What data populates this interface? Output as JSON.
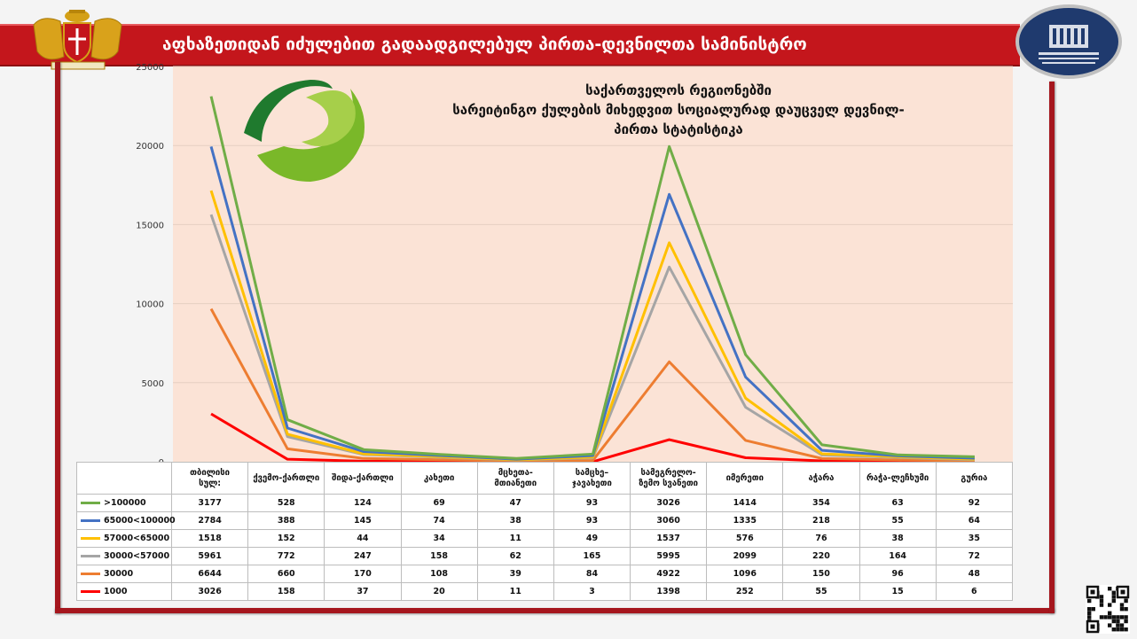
{
  "header": {
    "title": "აფხაზეთიდან იძულებით გადაადგილებულ პირთა-დევნილთა სამინისტრო"
  },
  "chart_data": {
    "type": "line",
    "title": "საქართველოს რეგიონებში სარეიტინგო ქულების მიხედვით სოციალურად დაუცველ დევნილ-პირთა  სტატისტიკა",
    "title_lines": [
      "საქართველოს რეგიონებში",
      "სარეიტინგო ქულების მიხედვით სოციალურად დაუცველ დევნილ-",
      "პირთა  სტატისტიკა"
    ],
    "ylim": [
      0,
      25000
    ],
    "yticks": [
      0,
      5000,
      10000,
      15000,
      20000,
      25000
    ],
    "grid": true,
    "legend_placement": "data-table-left",
    "categories": [
      "თბილისი სულ:",
      "ქვემო-ქართლი",
      "შიდა-ქართლი",
      "კახეთი",
      "მცხეთა-მთიანეთი",
      "სამცხე–ჯავახეთი",
      "სამეგრელო-ზემო სვანეთი",
      "იმერეთი",
      "აჭარა",
      "რაჭა-ლეჩხუმი",
      "გურია"
    ],
    "category_lines": [
      [
        "თბილისი",
        "სულ:"
      ],
      [
        "ქვემო-ქართლი"
      ],
      [
        "შიდა-ქართლი"
      ],
      [
        "კახეთი"
      ],
      [
        "მცხეთა-",
        "მთიანეთი"
      ],
      [
        "სამცხე–",
        "ჯავახეთი"
      ],
      [
        "სამეგრელო-",
        "ზემო სვანეთი"
      ],
      [
        "იმერეთი"
      ],
      [
        "აჭარა"
      ],
      [
        "რაჭა-ლეჩხუმი"
      ],
      [
        "გურია"
      ]
    ],
    "stacked": true,
    "series": [
      {
        "name": ">100000",
        "color": "#70ad47",
        "values": [
          3177,
          528,
          124,
          69,
          47,
          93,
          3026,
          1414,
          354,
          63,
          92
        ]
      },
      {
        "name": "65000<100000",
        "color": "#4472c4",
        "values": [
          2784,
          388,
          145,
          74,
          38,
          93,
          3060,
          1335,
          218,
          55,
          64
        ]
      },
      {
        "name": "57000<65000",
        "color": "#ffc000",
        "values": [
          1518,
          152,
          44,
          34,
          11,
          49,
          1537,
          576,
          76,
          38,
          35
        ]
      },
      {
        "name": "30000<57000",
        "color": "#a5a5a5",
        "values": [
          5961,
          772,
          247,
          158,
          62,
          165,
          5995,
          2099,
          220,
          164,
          72
        ]
      },
      {
        "name": "30000",
        "color": "#ed7d31",
        "values": [
          6644,
          660,
          170,
          108,
          39,
          84,
          4922,
          1096,
          150,
          96,
          48
        ]
      },
      {
        "name": "1000",
        "color": "#ff0000",
        "values": [
          3026,
          158,
          37,
          20,
          11,
          3,
          1398,
          252,
          55,
          15,
          6
        ]
      }
    ]
  }
}
